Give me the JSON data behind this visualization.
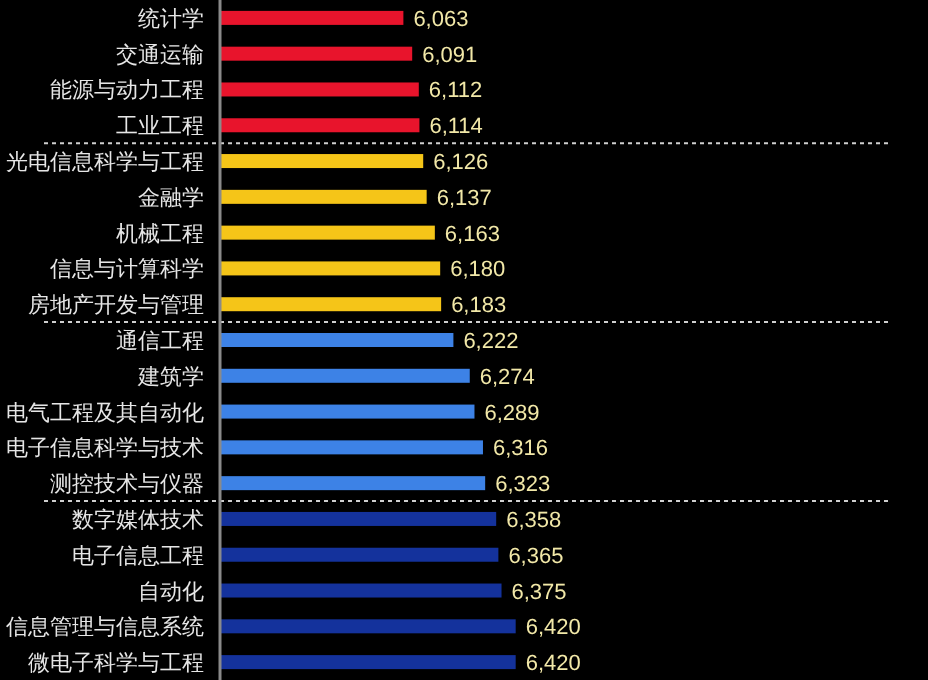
{
  "chart_data": {
    "type": "bar",
    "orientation": "horizontal",
    "categories": [
      "统计学",
      "交通运输",
      "能源与动力工程",
      "工业工程",
      "光电信息科学与工程",
      "金融学",
      "机械工程",
      "信息与计算科学",
      "房地产开发与管理",
      "通信工程",
      "建筑学",
      "电气工程及其自动化",
      "电子信息科学与技术",
      "测控技术与仪器",
      "数字媒体技术",
      "电子信息工程",
      "自动化",
      "信息管理与信息系统",
      "微电子科学与工程"
    ],
    "values": [
      6063,
      6091,
      6112,
      6114,
      6126,
      6137,
      6163,
      6180,
      6183,
      6222,
      6274,
      6289,
      6316,
      6323,
      6358,
      6365,
      6375,
      6420,
      6420
    ],
    "value_labels": [
      "6,063",
      "6,091",
      "6,112",
      "6,114",
      "6,126",
      "6,137",
      "6,163",
      "6,180",
      "6,183",
      "6,222",
      "6,274",
      "6,289",
      "6,316",
      "6,323",
      "6,358",
      "6,365",
      "6,375",
      "6,420",
      "6,420"
    ],
    "colors": [
      "#e8142c",
      "#e8142c",
      "#e8142c",
      "#e8142c",
      "#f5c518",
      "#f5c518",
      "#f5c518",
      "#f5c518",
      "#f5c518",
      "#3d82e6",
      "#3d82e6",
      "#3d82e6",
      "#3d82e6",
      "#3d82e6",
      "#14329c",
      "#14329c",
      "#14329c",
      "#14329c",
      "#14329c"
    ],
    "xlim": [
      5480,
      7610
    ]
  }
}
